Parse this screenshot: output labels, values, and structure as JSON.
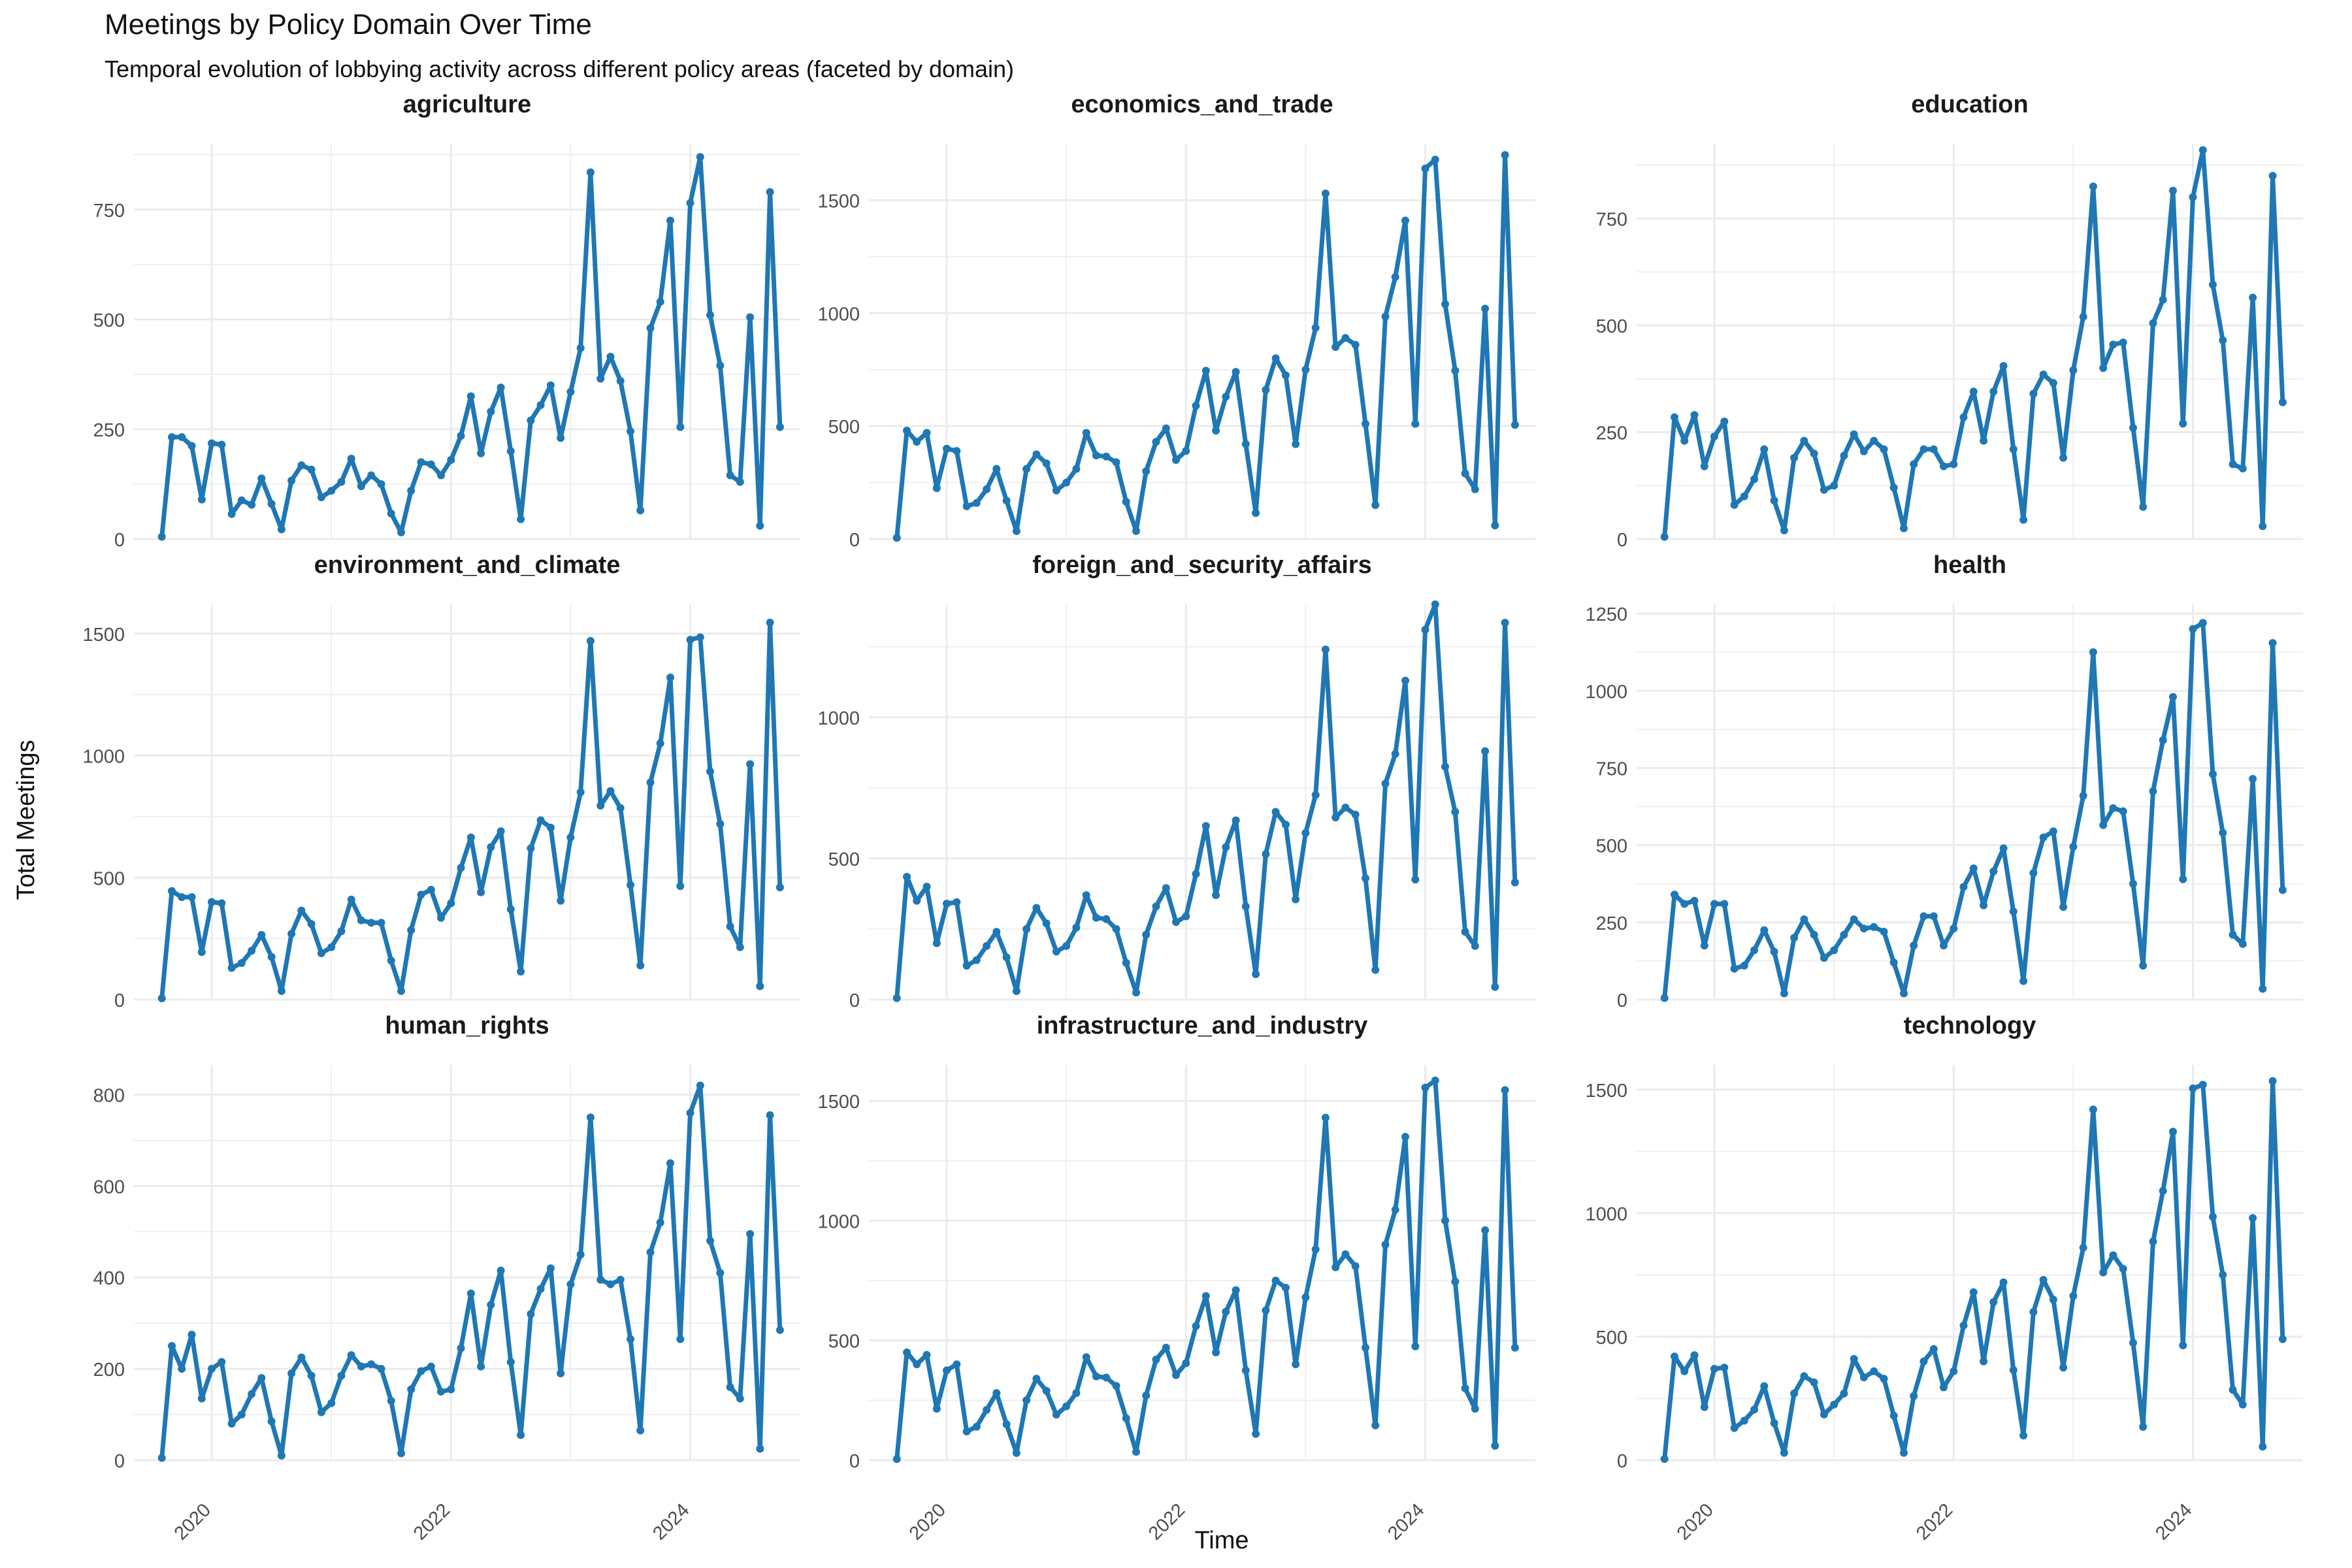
{
  "figure": {
    "title": "Meetings by Policy Domain Over Time",
    "subtitle": "Temporal evolution of lobbying activity across different policy areas (faceted by domain)",
    "xlabel": "Time",
    "ylabel": "Total Meetings",
    "line_color": "#1f77b4",
    "grid_color": "#ebebeb"
  },
  "chart_data": {
    "type": "line",
    "x_start": "2019-08",
    "x_interval": "month",
    "x_ticks": [
      "2020",
      "2022",
      "2024"
    ],
    "series": [
      {
        "name": "agriculture",
        "ylim": [
          0,
          900
        ],
        "yticks": [
          "0",
          "250",
          "500",
          "750"
        ],
        "values": [
          5,
          232,
          232,
          212,
          90,
          218,
          215,
          57,
          88,
          78,
          138,
          80,
          22,
          133,
          168,
          158,
          95,
          110,
          130,
          183,
          120,
          145,
          125,
          58,
          15,
          110,
          175,
          170,
          145,
          180,
          235,
          325,
          195,
          290,
          345,
          200,
          45,
          270,
          305,
          350,
          230,
          335,
          435,
          835,
          365,
          415,
          360,
          245,
          65,
          480,
          540,
          725,
          255,
          765,
          870,
          510,
          395,
          145,
          130,
          505,
          30,
          790,
          255
        ]
      },
      {
        "name": "economics_and_trade",
        "ylim": [
          0,
          1750
        ],
        "yticks": [
          "0",
          "500",
          "1000",
          "1500"
        ],
        "values": [
          5,
          480,
          430,
          470,
          225,
          400,
          390,
          145,
          160,
          220,
          310,
          170,
          35,
          310,
          375,
          335,
          215,
          250,
          310,
          470,
          370,
          365,
          340,
          165,
          35,
          300,
          430,
          490,
          350,
          390,
          590,
          745,
          480,
          630,
          740,
          420,
          115,
          660,
          800,
          725,
          420,
          750,
          935,
          1530,
          850,
          890,
          860,
          510,
          150,
          985,
          1160,
          1410,
          510,
          1640,
          1680,
          1040,
          745,
          290,
          220,
          1020,
          60,
          1700,
          505
        ]
      },
      {
        "name": "education",
        "ylim": [
          0,
          925
        ],
        "yticks": [
          "0",
          "250",
          "500",
          "750"
        ],
        "values": [
          5,
          285,
          230,
          290,
          170,
          240,
          275,
          80,
          100,
          140,
          210,
          90,
          20,
          190,
          230,
          200,
          115,
          125,
          195,
          245,
          205,
          230,
          210,
          120,
          25,
          175,
          210,
          210,
          170,
          175,
          285,
          345,
          230,
          345,
          405,
          210,
          45,
          340,
          385,
          365,
          190,
          395,
          520,
          825,
          400,
          455,
          460,
          260,
          75,
          505,
          560,
          815,
          270,
          800,
          910,
          595,
          465,
          175,
          165,
          565,
          30,
          850,
          320
        ]
      },
      {
        "name": "environment_and_climate",
        "ylim": [
          0,
          1620
        ],
        "yticks": [
          "0",
          "500",
          "1000",
          "1500"
        ],
        "values": [
          5,
          445,
          420,
          420,
          195,
          400,
          395,
          130,
          150,
          200,
          265,
          175,
          35,
          270,
          365,
          310,
          190,
          215,
          280,
          410,
          325,
          315,
          315,
          160,
          35,
          285,
          430,
          450,
          335,
          395,
          540,
          665,
          440,
          625,
          690,
          370,
          115,
          620,
          735,
          705,
          405,
          665,
          850,
          1470,
          795,
          855,
          785,
          470,
          140,
          890,
          1050,
          1320,
          465,
          1475,
          1485,
          935,
          720,
          300,
          215,
          965,
          55,
          1545,
          460
        ]
      },
      {
        "name": "foreign_and_security_affairs",
        "ylim": [
          0,
          1400
        ],
        "yticks": [
          "0",
          "500",
          "1000"
        ],
        "values": [
          5,
          435,
          350,
          400,
          200,
          340,
          345,
          120,
          140,
          190,
          240,
          150,
          30,
          250,
          325,
          270,
          170,
          190,
          255,
          370,
          290,
          285,
          250,
          130,
          25,
          230,
          330,
          395,
          275,
          295,
          445,
          615,
          370,
          540,
          635,
          330,
          90,
          515,
          665,
          620,
          355,
          590,
          725,
          1240,
          645,
          680,
          655,
          430,
          105,
          765,
          870,
          1130,
          425,
          1310,
          1400,
          825,
          665,
          240,
          190,
          880,
          45,
          1335,
          415
        ]
      },
      {
        "name": "health",
        "ylim": [
          0,
          1280
        ],
        "yticks": [
          "0",
          "250",
          "500",
          "750",
          "1000",
          "1250"
        ],
        "values": [
          5,
          340,
          310,
          320,
          175,
          310,
          310,
          100,
          110,
          160,
          225,
          155,
          20,
          200,
          260,
          210,
          135,
          160,
          210,
          260,
          230,
          235,
          220,
          120,
          20,
          175,
          270,
          270,
          175,
          230,
          365,
          425,
          305,
          415,
          490,
          285,
          60,
          410,
          525,
          545,
          300,
          495,
          660,
          1125,
          565,
          620,
          610,
          375,
          110,
          675,
          840,
          980,
          390,
          1200,
          1220,
          730,
          540,
          210,
          180,
          715,
          35,
          1155,
          355
        ]
      },
      {
        "name": "human_rights",
        "ylim": [
          0,
          865
        ],
        "yticks": [
          "0",
          "200",
          "400",
          "600",
          "800"
        ],
        "values": [
          5,
          250,
          200,
          275,
          135,
          200,
          215,
          80,
          100,
          145,
          180,
          85,
          10,
          190,
          225,
          185,
          105,
          125,
          185,
          230,
          205,
          210,
          200,
          130,
          15,
          155,
          195,
          205,
          150,
          155,
          245,
          365,
          205,
          340,
          415,
          215,
          55,
          320,
          375,
          420,
          190,
          385,
          450,
          750,
          395,
          385,
          395,
          265,
          65,
          455,
          520,
          650,
          265,
          760,
          820,
          480,
          410,
          160,
          135,
          495,
          25,
          755,
          285
        ]
      },
      {
        "name": "infrastructure_and_industry",
        "ylim": [
          0,
          1650
        ],
        "yticks": [
          "0",
          "500",
          "1000",
          "1500"
        ],
        "values": [
          5,
          450,
          400,
          440,
          215,
          375,
          400,
          120,
          140,
          210,
          280,
          150,
          30,
          250,
          340,
          290,
          190,
          225,
          280,
          430,
          350,
          345,
          310,
          175,
          35,
          270,
          420,
          470,
          355,
          405,
          560,
          685,
          450,
          620,
          710,
          375,
          110,
          625,
          750,
          720,
          400,
          680,
          880,
          1430,
          805,
          860,
          810,
          470,
          145,
          900,
          1045,
          1350,
          475,
          1555,
          1585,
          1000,
          745,
          300,
          215,
          960,
          60,
          1545,
          470
        ]
      },
      {
        "name": "technology",
        "ylim": [
          0,
          1600
        ],
        "yticks": [
          "0",
          "500",
          "1000",
          "1500"
        ],
        "values": [
          5,
          420,
          360,
          425,
          215,
          370,
          375,
          130,
          160,
          205,
          300,
          150,
          30,
          270,
          340,
          315,
          185,
          225,
          270,
          410,
          335,
          360,
          330,
          180,
          30,
          260,
          400,
          450,
          295,
          360,
          545,
          680,
          400,
          640,
          720,
          365,
          100,
          600,
          730,
          650,
          375,
          665,
          860,
          1420,
          760,
          830,
          775,
          475,
          135,
          885,
          1090,
          1330,
          465,
          1505,
          1520,
          985,
          750,
          285,
          225,
          980,
          55,
          1535,
          490
        ]
      }
    ]
  }
}
